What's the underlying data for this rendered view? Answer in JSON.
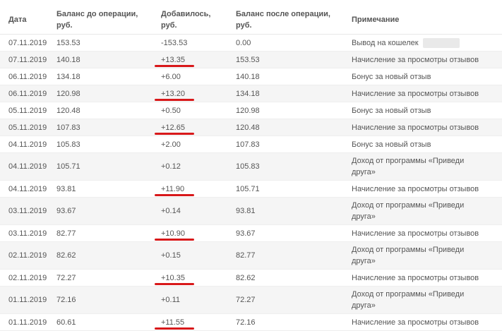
{
  "table": {
    "headers": {
      "date": "Дата",
      "before_l1": "Баланс до операции,",
      "before_l2": "руб.",
      "added_l1": "Добавилось,",
      "added_l2": "руб.",
      "after_l1": "Баланс после операции,",
      "after_l2": "руб.",
      "note": "Примечание"
    },
    "rows": [
      {
        "date": "07.11.2019",
        "before": "153.53",
        "added": "-153.53",
        "after": "0.00",
        "note_l1": "Вывод на кошелек",
        "note_l2": ""
      },
      {
        "date": "07.11.2019",
        "before": "140.18",
        "added": "+13.35",
        "after": "153.53",
        "note_l1": "Начисление за просмотры отзывов",
        "note_l2": ""
      },
      {
        "date": "06.11.2019",
        "before": "134.18",
        "added": "+6.00",
        "after": "140.18",
        "note_l1": "Бонус за новый отзыв",
        "note_l2": ""
      },
      {
        "date": "06.11.2019",
        "before": "120.98",
        "added": "+13.20",
        "after": "134.18",
        "note_l1": "Начисление за просмотры отзывов",
        "note_l2": ""
      },
      {
        "date": "05.11.2019",
        "before": "120.48",
        "added": "+0.50",
        "after": "120.98",
        "note_l1": "Бонус за новый отзыв",
        "note_l2": ""
      },
      {
        "date": "05.11.2019",
        "before": "107.83",
        "added": "+12.65",
        "after": "120.48",
        "note_l1": "Начисление за просмотры отзывов",
        "note_l2": ""
      },
      {
        "date": "04.11.2019",
        "before": "105.83",
        "added": "+2.00",
        "after": "107.83",
        "note_l1": "Бонус за новый отзыв",
        "note_l2": ""
      },
      {
        "date": "04.11.2019",
        "before": "105.71",
        "added": "+0.12",
        "after": "105.83",
        "note_l1": "Доход от программы «Приведи",
        "note_l2": "друга»"
      },
      {
        "date": "04.11.2019",
        "before": "93.81",
        "added": "+11.90",
        "after": "105.71",
        "note_l1": "Начисление за просмотры отзывов",
        "note_l2": ""
      },
      {
        "date": "03.11.2019",
        "before": "93.67",
        "added": "+0.14",
        "after": "93.81",
        "note_l1": "Доход от программы «Приведи",
        "note_l2": "друга»"
      },
      {
        "date": "03.11.2019",
        "before": "82.77",
        "added": "+10.90",
        "after": "93.67",
        "note_l1": "Начисление за просмотры отзывов",
        "note_l2": ""
      },
      {
        "date": "02.11.2019",
        "before": "82.62",
        "added": "+0.15",
        "after": "82.77",
        "note_l1": "Доход от программы «Приведи",
        "note_l2": "друга»"
      },
      {
        "date": "02.11.2019",
        "before": "72.27",
        "added": "+10.35",
        "after": "82.62",
        "note_l1": "Начисление за просмотры отзывов",
        "note_l2": ""
      },
      {
        "date": "01.11.2019",
        "before": "72.16",
        "added": "+0.11",
        "after": "72.27",
        "note_l1": "Доход от программы «Приведи",
        "note_l2": "друга»"
      },
      {
        "date": "01.11.2019",
        "before": "60.61",
        "added": "+11.55",
        "after": "72.16",
        "note_l1": "Начисление за просмотры отзывов",
        "note_l2": ""
      }
    ]
  },
  "colors": {
    "accent": "#d8181a",
    "alt_row": "#f5f5f5",
    "text": "#555555"
  }
}
